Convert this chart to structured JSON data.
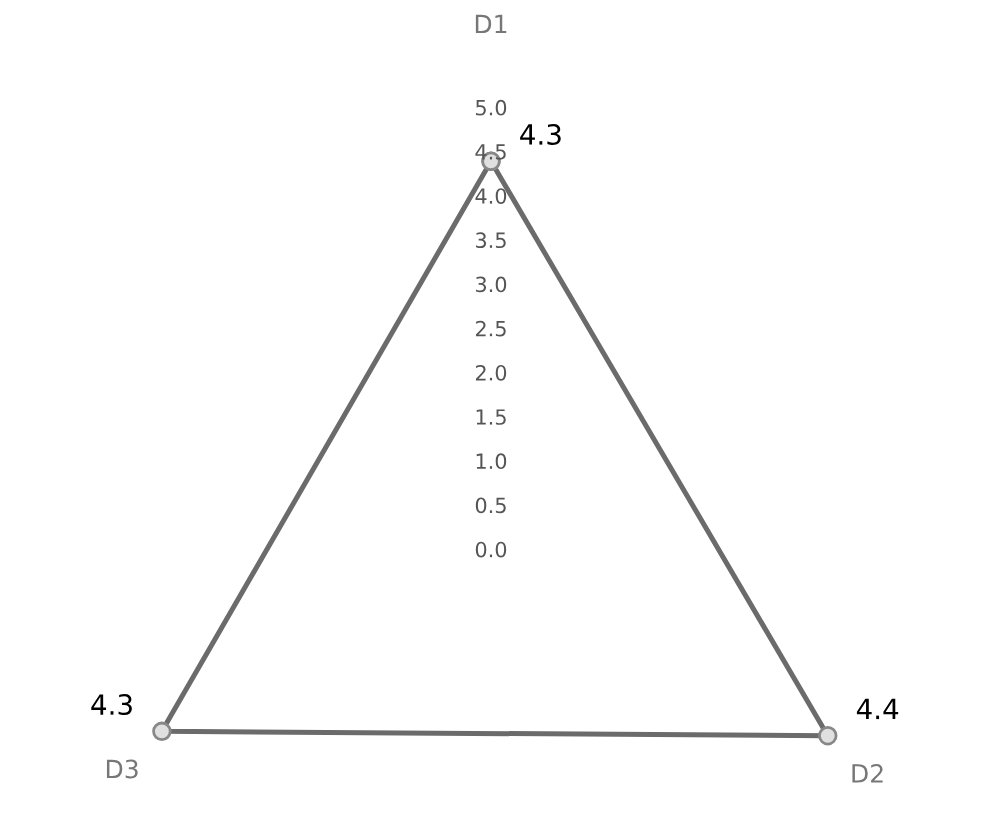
{
  "chart_data": {
    "type": "radar",
    "categories": [
      "D1",
      "D2",
      "D3"
    ],
    "series": [
      {
        "color": "#6b6b6b",
        "values": [
          4.3,
          4.4,
          4.3
        ]
      }
    ],
    "ylim": [
      0,
      5
    ],
    "yticks": [
      {
        "value": 0,
        "label": "0.0"
      },
      {
        "value": 0.5,
        "label": "0.5"
      },
      {
        "value": 1,
        "label": "1.0"
      },
      {
        "value": 1.5,
        "label": "1.5"
      },
      {
        "value": 2,
        "label": "2.0"
      },
      {
        "value": 2.5,
        "label": "2.5"
      },
      {
        "value": 3,
        "label": "3.0"
      },
      {
        "value": 3.5,
        "label": "3.5"
      },
      {
        "value": 4,
        "label": "4.0"
      },
      {
        "value": 4.5,
        "label": "4.5"
      },
      {
        "value": 5,
        "label": "5.0"
      }
    ],
    "grid": false,
    "marker": "circle",
    "data_labels": true,
    "legend": false
  }
}
